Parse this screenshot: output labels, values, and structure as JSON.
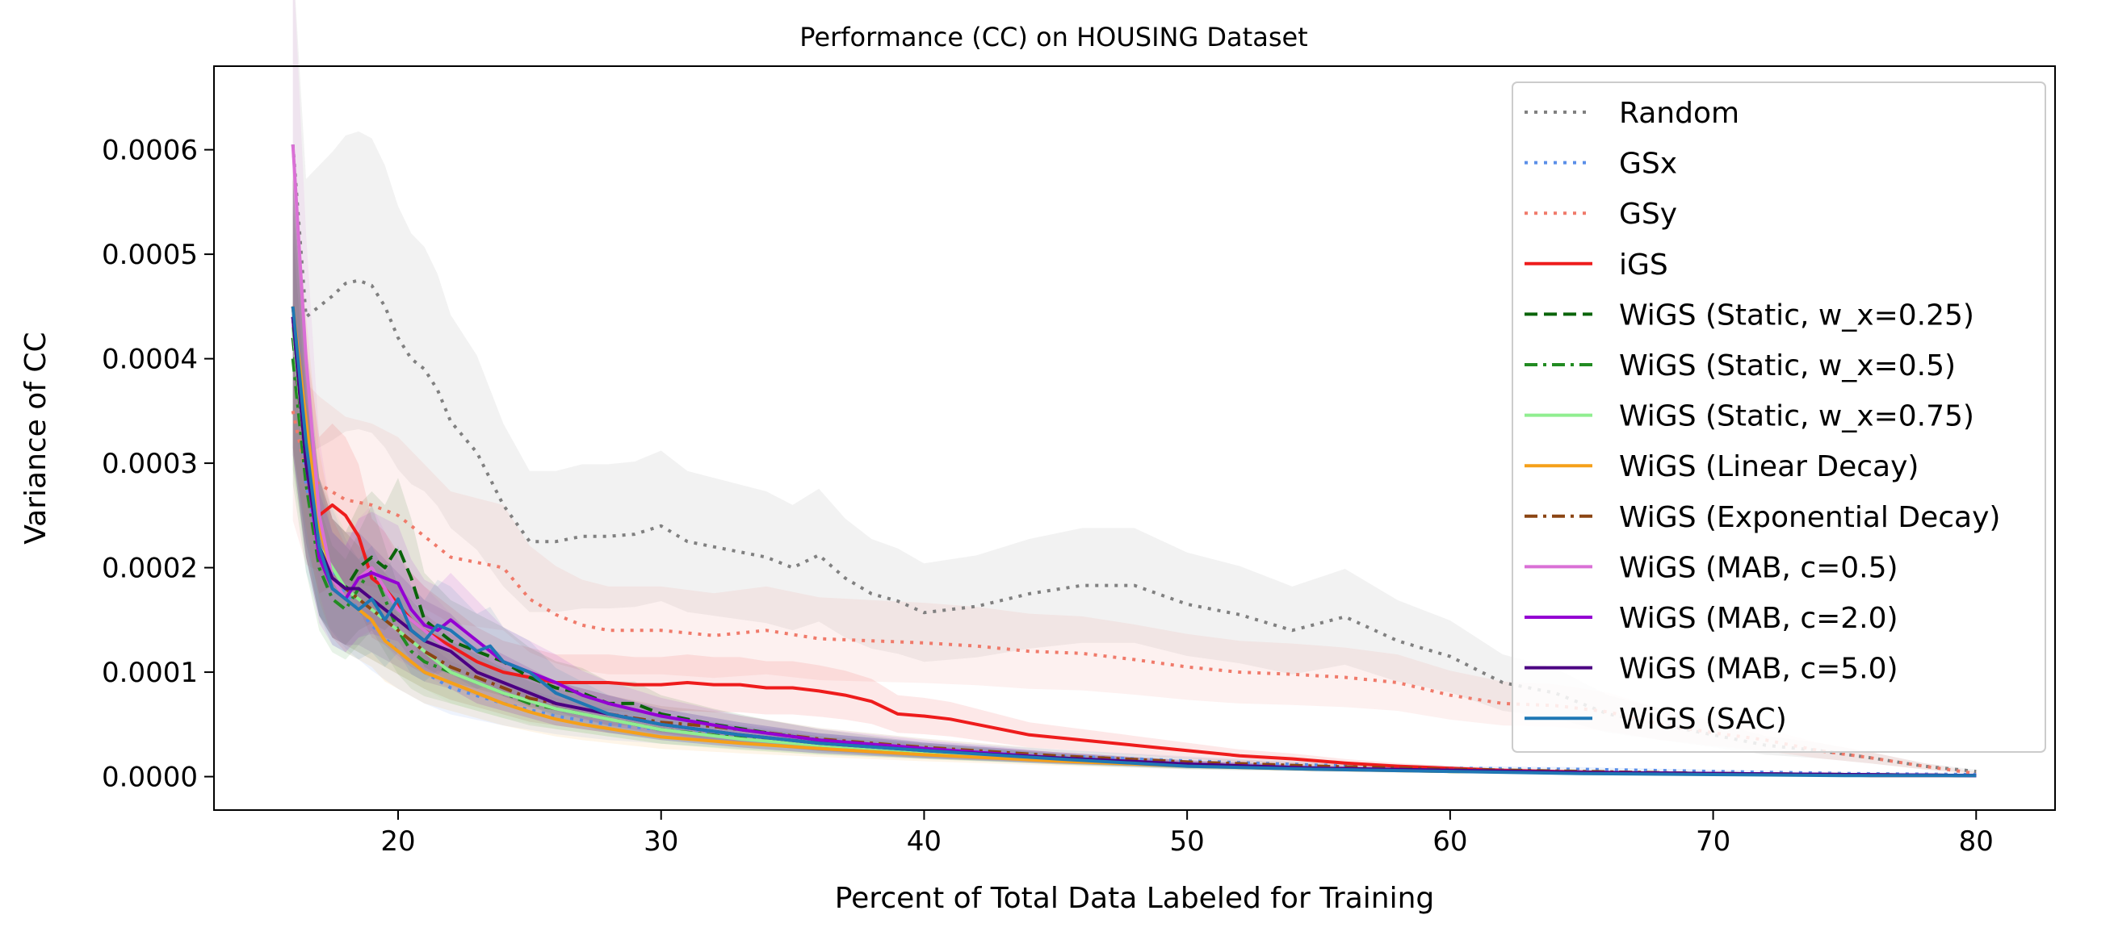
{
  "chart_data": {
    "type": "line",
    "title": "Performance (CC) on HOUSING Dataset",
    "xlabel": "Percent of Total Data Labeled for Training",
    "ylabel": "Variance of CC",
    "xlim": [
      13,
      83
    ],
    "ylim": [
      -3.2e-05,
      0.00068
    ],
    "xticks": [
      20,
      30,
      40,
      50,
      60,
      70,
      80
    ],
    "yticks": [
      0.0,
      0.0001,
      0.0002,
      0.0003,
      0.0004,
      0.0005,
      0.0006
    ],
    "xtick_labels": [
      "20",
      "30",
      "40",
      "50",
      "60",
      "70",
      "80"
    ],
    "ytick_labels": [
      "0.0000",
      "0.0001",
      "0.0002",
      "0.0003",
      "0.0004",
      "0.0005",
      "0.0006"
    ],
    "grid": false,
    "legend_position": "upper right",
    "series": [
      {
        "name": "Random",
        "color": "#808080",
        "dash": "dotted",
        "x": [
          16,
          16.5,
          17,
          17.5,
          18,
          18.5,
          19,
          19.5,
          20,
          20.5,
          21,
          21.5,
          22,
          23,
          24,
          25,
          26,
          27,
          28,
          29,
          30,
          31,
          32,
          33,
          34,
          35,
          36,
          37,
          38,
          39,
          40,
          42,
          44,
          46,
          48,
          50,
          52,
          54,
          56,
          58,
          60,
          62,
          64,
          66,
          68,
          70,
          72,
          74,
          76,
          78,
          80
        ],
        "y": [
          0.000605,
          0.00044,
          0.00045,
          0.00046,
          0.000472,
          0.000475,
          0.00047,
          0.00045,
          0.00042,
          0.0004,
          0.00039,
          0.00037,
          0.00034,
          0.00031,
          0.00026,
          0.000225,
          0.000225,
          0.00023,
          0.00023,
          0.000232,
          0.00024,
          0.000225,
          0.00022,
          0.000215,
          0.00021,
          0.0002,
          0.000212,
          0.00019,
          0.000175,
          0.000168,
          0.000157,
          0.000163,
          0.000175,
          0.000183,
          0.000183,
          0.000165,
          0.000155,
          0.00014,
          0.000153,
          0.00013,
          0.000115,
          9e-05,
          8e-05,
          6e-05,
          5e-05,
          4e-05,
          3e-05,
          2.5e-05,
          1.8e-05,
          1e-05,
          5e-06
        ]
      },
      {
        "name": "GSx",
        "color": "#5a8ee8",
        "dash": "dotted",
        "x": [
          16,
          16.5,
          17,
          18,
          19,
          20,
          21,
          22,
          24,
          26,
          28,
          30,
          33,
          36,
          40,
          45,
          50,
          55,
          60,
          65,
          70,
          75,
          80
        ],
        "y": [
          0.00045,
          0.00028,
          0.00022,
          0.000175,
          0.000145,
          0.00012,
          0.0001,
          8.5e-05,
          7e-05,
          5.8e-05,
          5e-05,
          4.5e-05,
          3.8e-05,
          3.2e-05,
          2.6e-05,
          2e-05,
          1.5e-05,
          1.1e-05,
          8e-06,
          7e-06,
          5e-06,
          3e-06,
          2e-06
        ]
      },
      {
        "name": "GSy",
        "color": "#f07a6a",
        "dash": "dotted",
        "x": [
          16,
          16.5,
          17,
          18,
          19,
          20,
          21,
          22,
          23,
          24,
          25,
          26,
          27,
          28,
          30,
          32,
          34,
          36,
          38,
          40,
          42,
          44,
          46,
          48,
          50,
          52,
          54,
          56,
          58,
          60,
          62,
          64,
          66,
          68,
          70,
          72,
          74,
          76,
          78,
          80
        ],
        "y": [
          0.00035,
          0.00029,
          0.00028,
          0.000265,
          0.00026,
          0.00025,
          0.00023,
          0.00021,
          0.000205,
          0.0002,
          0.00017,
          0.000155,
          0.000145,
          0.00014,
          0.00014,
          0.000135,
          0.00014,
          0.000132,
          0.00013,
          0.000128,
          0.000125,
          0.00012,
          0.000118,
          0.000112,
          0.000105,
          0.0001,
          9.8e-05,
          9.5e-05,
          9e-05,
          7.8e-05,
          7e-05,
          6.8e-05,
          6.2e-05,
          5e-05,
          4.2e-05,
          3.5e-05,
          2.5e-05,
          1.8e-05,
          1e-05,
          3e-06
        ]
      },
      {
        "name": "iGS",
        "color": "#ee1c1c",
        "dash": "solid",
        "x": [
          16,
          16.5,
          17,
          17.5,
          18,
          18.5,
          19,
          19.5,
          20,
          20.5,
          21,
          22,
          23,
          24,
          25,
          26,
          27,
          28,
          29,
          30,
          31,
          32,
          33,
          34,
          35,
          36,
          37,
          38,
          39,
          40,
          41,
          42,
          44,
          46,
          48,
          50,
          52,
          54,
          56,
          58,
          60,
          62,
          64,
          66,
          68,
          70,
          72,
          74,
          76,
          78,
          80
        ],
        "y": [
          0.00045,
          0.00032,
          0.00025,
          0.00026,
          0.00025,
          0.00023,
          0.00019,
          0.00018,
          0.000165,
          0.00015,
          0.00014,
          0.000125,
          0.00011,
          0.0001,
          9.5e-05,
          9e-05,
          9e-05,
          9e-05,
          8.8e-05,
          8.8e-05,
          9e-05,
          8.8e-05,
          8.8e-05,
          8.5e-05,
          8.5e-05,
          8.2e-05,
          7.8e-05,
          7.2e-05,
          6e-05,
          5.8e-05,
          5.5e-05,
          5e-05,
          4e-05,
          3.5e-05,
          3e-05,
          2.5e-05,
          2e-05,
          1.7e-05,
          1.3e-05,
          1e-05,
          8e-06,
          6e-06,
          5e-06,
          4e-06,
          3e-06,
          3e-06,
          2e-06,
          2e-06,
          1e-06,
          1e-06,
          1e-06
        ]
      },
      {
        "name": "WiGS (Static, w_x=0.25)",
        "color": "#0a640a",
        "dash": "dashed",
        "x": [
          16,
          16.5,
          17,
          17.5,
          18,
          18.5,
          19,
          19.5,
          20,
          20.5,
          21,
          22,
          23,
          24,
          25,
          26,
          27,
          28,
          29,
          30,
          32,
          34,
          36,
          38,
          40,
          45,
          50,
          55,
          60,
          65,
          70,
          75,
          80
        ],
        "y": [
          0.00042,
          0.0003,
          0.00022,
          0.00019,
          0.00018,
          0.0002,
          0.00021,
          0.0002,
          0.00022,
          0.00019,
          0.00015,
          0.00013,
          0.00012,
          0.00011,
          9.5e-05,
          8.5e-05,
          8e-05,
          7e-05,
          7e-05,
          6e-05,
          5e-05,
          4.2e-05,
          3.5e-05,
          3e-05,
          2.5e-05,
          1.8e-05,
          1.2e-05,
          8e-06,
          6e-06,
          4e-06,
          3e-06,
          2e-06,
          1e-06
        ]
      },
      {
        "name": "WiGS (Static, w_x=0.5)",
        "color": "#228b22",
        "dash": "dashdot",
        "x": [
          16,
          16.5,
          17,
          17.5,
          18,
          18.5,
          19,
          19.5,
          20,
          20.5,
          21,
          22,
          23,
          24,
          25,
          26,
          28,
          30,
          33,
          36,
          40,
          45,
          50,
          55,
          60,
          65,
          70,
          75,
          80
        ],
        "y": [
          0.0004,
          0.00028,
          0.0002,
          0.00017,
          0.00016,
          0.00018,
          0.0002,
          0.00017,
          0.00014,
          0.00012,
          0.00011,
          0.0001,
          9e-05,
          8e-05,
          7e-05,
          6.5e-05,
          5.5e-05,
          4.5e-05,
          3.7e-05,
          3e-05,
          2.4e-05,
          1.7e-05,
          1.1e-05,
          8e-06,
          5e-06,
          4e-06,
          3e-06,
          2e-06,
          1e-06
        ]
      },
      {
        "name": "WiGS (Static, w_x=0.75)",
        "color": "#90ee90",
        "dash": "solid",
        "x": [
          16,
          16.5,
          17,
          18,
          19,
          20,
          21,
          22,
          24,
          26,
          28,
          30,
          33,
          36,
          40,
          45,
          50,
          55,
          60,
          65,
          70,
          75,
          80
        ],
        "y": [
          0.00043,
          0.0003,
          0.00022,
          0.00018,
          0.00016,
          0.00014,
          0.00012,
          0.0001,
          8e-05,
          6.5e-05,
          5.5e-05,
          4.5e-05,
          3.6e-05,
          3e-05,
          2.4e-05,
          1.7e-05,
          1.1e-05,
          8e-06,
          5e-06,
          4e-06,
          3e-06,
          2e-06,
          1e-06
        ]
      },
      {
        "name": "WiGS (Linear Decay)",
        "color": "#f5a01a",
        "dash": "solid",
        "x": [
          16,
          16.5,
          17,
          17.5,
          18,
          18.5,
          19,
          19.5,
          20,
          21,
          22,
          23,
          24,
          25,
          26,
          27,
          28,
          30,
          33,
          36,
          40,
          45,
          50,
          55,
          60,
          65,
          70,
          75,
          80
        ],
        "y": [
          0.00045,
          0.00034,
          0.00024,
          0.00019,
          0.00017,
          0.00016,
          0.00015,
          0.00013,
          0.00012,
          0.0001,
          9e-05,
          8e-05,
          7e-05,
          6.2e-05,
          5.5e-05,
          5e-05,
          4.6e-05,
          3.8e-05,
          3.2e-05,
          2.7e-05,
          2.1e-05,
          1.5e-05,
          1e-05,
          7e-06,
          5e-06,
          4e-06,
          3e-06,
          2e-06,
          1e-06
        ]
      },
      {
        "name": "WiGS (Exponential Decay)",
        "color": "#8b4513",
        "dash": "dashdot",
        "x": [
          16,
          16.5,
          17,
          17.5,
          18,
          18.5,
          19,
          19.5,
          20,
          21,
          22,
          23,
          24,
          25,
          26,
          28,
          30,
          32,
          34,
          36,
          40,
          45,
          50,
          55,
          60,
          65,
          70,
          75,
          80
        ],
        "y": [
          0.00044,
          0.0003,
          0.00022,
          0.00019,
          0.00018,
          0.00017,
          0.00016,
          0.00015,
          0.00014,
          0.00012,
          0.000105,
          9.5e-05,
          8.5e-05,
          7.5e-05,
          7e-05,
          6e-05,
          5.2e-05,
          4.8e-05,
          4.2e-05,
          3.6e-05,
          2.8e-05,
          2e-05,
          1.4e-05,
          1e-05,
          7e-06,
          5e-06,
          3e-06,
          2e-06,
          1e-06
        ]
      },
      {
        "name": "WiGS (MAB, c=0.5)",
        "color": "#da70d6",
        "dash": "solid",
        "x": [
          16,
          16.5,
          17,
          17.5,
          18,
          18.5,
          19,
          19.5,
          20,
          21,
          22,
          23,
          24,
          25,
          26,
          28,
          30,
          33,
          36,
          40,
          45,
          50,
          55,
          60,
          65,
          70,
          75,
          80
        ],
        "y": [
          0.000605,
          0.0004,
          0.00025,
          0.00019,
          0.00017,
          0.00019,
          0.0002,
          0.00018,
          0.00016,
          0.00014,
          0.00012,
          0.0001,
          9e-05,
          8e-05,
          7e-05,
          6e-05,
          5e-05,
          4e-05,
          3.2e-05,
          2.5e-05,
          1.8e-05,
          1.2e-05,
          8e-06,
          6e-06,
          4e-06,
          3e-06,
          2e-06,
          1e-06
        ]
      },
      {
        "name": "WiGS (MAB, c=2.0)",
        "color": "#9400d3",
        "dash": "solid",
        "x": [
          16,
          16.5,
          17,
          17.5,
          18,
          18.5,
          19,
          19.5,
          20,
          20.5,
          21,
          21.5,
          22,
          22.5,
          23,
          24,
          25,
          26,
          27,
          28,
          30,
          33,
          36,
          40,
          45,
          50,
          55,
          60,
          65,
          70,
          75,
          80
        ],
        "y": [
          0.00044,
          0.0003,
          0.00021,
          0.00018,
          0.00017,
          0.00019,
          0.000195,
          0.00019,
          0.000185,
          0.00016,
          0.000145,
          0.00014,
          0.00015,
          0.00014,
          0.00013,
          0.00011,
          0.0001,
          9e-05,
          7.8e-05,
          7e-05,
          5.8e-05,
          4.5e-05,
          3.5e-05,
          2.7e-05,
          1.8e-05,
          1.2e-05,
          8e-06,
          6e-06,
          4e-06,
          3e-06,
          2e-06,
          1e-06
        ]
      },
      {
        "name": "WiGS (MAB, c=5.0)",
        "color": "#4b0082",
        "dash": "solid",
        "x": [
          16,
          16.5,
          17,
          17.5,
          18,
          18.5,
          19,
          19.5,
          20,
          21,
          22,
          23,
          24,
          25,
          26,
          28,
          30,
          33,
          36,
          40,
          45,
          50,
          55,
          60,
          65,
          70,
          75,
          80
        ],
        "y": [
          0.00044,
          0.0003,
          0.00022,
          0.00019,
          0.00018,
          0.00018,
          0.00017,
          0.00016,
          0.00015,
          0.00013,
          0.00012,
          0.0001,
          9e-05,
          8e-05,
          7e-05,
          6e-05,
          5e-05,
          4e-05,
          3.2e-05,
          2.5e-05,
          1.8e-05,
          1.2e-05,
          8e-06,
          6e-06,
          4e-06,
          3e-06,
          2e-06,
          1e-06
        ]
      },
      {
        "name": "WiGS (SAC)",
        "color": "#1f77b4",
        "dash": "solid",
        "x": [
          16,
          16.5,
          17,
          17.5,
          18,
          18.5,
          19,
          19.5,
          20,
          20.5,
          21,
          21.5,
          22,
          22.5,
          23,
          23.5,
          24,
          25,
          26,
          27,
          28,
          30,
          33,
          36,
          40,
          45,
          50,
          55,
          60,
          65,
          70,
          75,
          80
        ],
        "y": [
          0.00045,
          0.00032,
          0.00022,
          0.00018,
          0.00017,
          0.00016,
          0.00017,
          0.00015,
          0.00017,
          0.00014,
          0.00013,
          0.000145,
          0.00014,
          0.00013,
          0.00012,
          0.000125,
          0.00011,
          0.0001,
          8e-05,
          7e-05,
          6e-05,
          5e-05,
          4e-05,
          3.2e-05,
          2.5e-05,
          1.7e-05,
          1e-05,
          7e-06,
          5e-06,
          3e-06,
          2e-06,
          1e-06,
          1e-06
        ]
      }
    ]
  }
}
